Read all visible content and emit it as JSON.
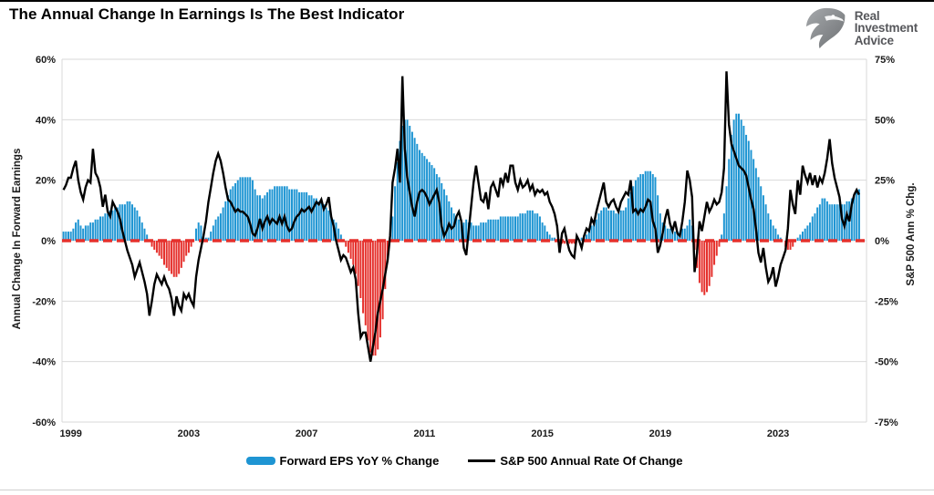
{
  "header": {
    "title": "The Annual Change In Earnings Is The Best Indicator",
    "brand": [
      "Real",
      "Investment",
      "Advice"
    ],
    "logo_text_color": "#56575b",
    "logo_icon_color_dark": "#6e7174",
    "logo_icon_color_light": "#9a9da0"
  },
  "chart_data": {
    "type": "bar+line combo, dual axis, monthly data Oct-1998 to Oct-2025",
    "grid": true,
    "grid_color": "#d9d9d9",
    "tick_label_color": "#1a1a1a",
    "legend_position": "bottom",
    "zero_line": {
      "color": "#e5302c",
      "style": "dashed",
      "value": 0
    },
    "x_axis": {
      "domain": [
        1998.7,
        2026.0
      ],
      "ticks": [
        1999,
        2003,
        2007,
        2011,
        2015,
        2019,
        2023
      ],
      "tick_labels": [
        "1999",
        "2003",
        "2007",
        "2011",
        "2015",
        "2019",
        "2023"
      ]
    },
    "left_axis": {
      "title": "Annual Change In Forward Earnings",
      "min": -60,
      "max": 60,
      "ticks": [
        60,
        40,
        20,
        0,
        -20,
        -40,
        -60
      ],
      "tick_labels": [
        "60%",
        "40%",
        "20%",
        "0%",
        "-20%",
        "-40%",
        "-60%"
      ]
    },
    "right_axis": {
      "title": "S&P 500  Ann % Chg.",
      "min": -75,
      "max": 75,
      "ticks": [
        75,
        50,
        25,
        0,
        -25,
        -50,
        -75
      ],
      "tick_labels": [
        "75%",
        "50%",
        "25%",
        "0%",
        "-25%",
        "-50%",
        "-75%"
      ]
    },
    "series": [
      {
        "name": "Forward EPS YoY % Change",
        "type": "bar",
        "axis": "left",
        "color_positive": "#1e95d3",
        "color_negative": "#e5302c",
        "x_start": 1998.75,
        "x_step_months": 1,
        "values": [
          3,
          3,
          3,
          3,
          4,
          6,
          7,
          5,
          4,
          5,
          5,
          6,
          6,
          7,
          7,
          8,
          8,
          9,
          9,
          10,
          10,
          11,
          11,
          12,
          12,
          12,
          13,
          13,
          12,
          11,
          10,
          8,
          6,
          4,
          2,
          0,
          -2,
          -3,
          -4,
          -5,
          -6,
          -8,
          -9,
          -10,
          -11,
          -12,
          -12,
          -11,
          -9,
          -7,
          -5,
          -4,
          -2,
          0,
          4,
          6,
          5,
          2,
          1,
          1,
          3,
          5,
          7,
          8,
          9,
          11,
          13,
          15,
          17,
          18,
          19,
          20,
          21,
          21,
          21,
          21,
          21,
          20,
          17,
          15,
          15,
          14,
          15,
          16,
          17,
          17,
          18,
          18,
          18,
          18,
          18,
          18,
          17,
          17,
          17,
          17,
          16,
          16,
          16,
          16,
          15,
          15,
          14,
          14,
          13,
          13,
          12,
          11,
          10,
          8,
          7,
          6,
          4,
          2,
          0,
          -2,
          -4,
          -6,
          -8,
          -11,
          -15,
          -19,
          -24,
          -28,
          -33,
          -37,
          -38,
          -38,
          -36,
          -32,
          -26,
          -16,
          -7,
          0,
          8,
          18,
          26,
          33,
          38,
          40,
          40,
          38,
          36,
          34,
          32,
          30,
          29,
          28,
          27,
          26,
          25,
          24,
          22,
          21,
          19,
          17,
          15,
          13,
          11,
          9,
          8,
          7,
          6,
          6,
          7,
          6,
          6,
          5,
          5,
          5,
          6,
          6,
          6,
          7,
          7,
          7,
          7,
          7,
          8,
          8,
          8,
          8,
          8,
          8,
          8,
          8,
          9,
          9,
          9,
          10,
          10,
          10,
          9,
          9,
          8,
          6,
          5,
          3,
          2,
          1,
          1,
          0,
          0,
          -1,
          -1,
          -1,
          -1,
          -1,
          -1,
          0,
          0,
          1,
          1,
          2,
          3,
          5,
          6,
          7,
          9,
          10,
          11,
          11,
          10,
          10,
          10,
          9,
          9,
          10,
          10,
          11,
          14,
          16,
          18,
          20,
          21,
          22,
          22,
          23,
          23,
          23,
          22,
          21,
          15,
          9,
          6,
          5,
          4,
          4,
          3,
          3,
          3,
          3,
          4,
          4,
          5,
          7,
          5,
          -3,
          -9,
          -14,
          -17,
          -18,
          -17,
          -15,
          -12,
          -8,
          -5,
          -2,
          2,
          9,
          18,
          27,
          35,
          40,
          42,
          42,
          40,
          38,
          35,
          33,
          30,
          27,
          24,
          21,
          18,
          15,
          12,
          9,
          7,
          5,
          4,
          2,
          1,
          0,
          -2,
          -3,
          -3,
          -2,
          0,
          1,
          2,
          3,
          4,
          5,
          6,
          8,
          9,
          11,
          12,
          14,
          14,
          13,
          12,
          12,
          12,
          12,
          12,
          12,
          12,
          13,
          13,
          14,
          15,
          16,
          17
        ]
      },
      {
        "name": "S&P 500 Annual Rate Of Change",
        "type": "line",
        "axis": "right",
        "color": "#000000",
        "x_start": 1998.75,
        "x_step_months": 1,
        "values": [
          21,
          23,
          26,
          26,
          30,
          33,
          25,
          20,
          17,
          22,
          25,
          24,
          38,
          28,
          26,
          22,
          14,
          19,
          12,
          10,
          16,
          14,
          12,
          9,
          4,
          0,
          -4,
          -7,
          -10,
          -15,
          -12,
          -9,
          -13,
          -17,
          -22,
          -31,
          -25,
          -18,
          -14,
          -16,
          -18,
          -15,
          -18,
          -20,
          -24,
          -31,
          -23,
          -27,
          -29,
          -22,
          -24,
          -22,
          -25,
          -27,
          -15,
          -8,
          -3,
          2,
          8,
          16,
          22,
          28,
          33,
          36,
          33,
          28,
          22,
          17,
          16,
          14,
          12,
          13,
          12,
          12,
          11,
          10,
          7,
          3,
          2,
          5,
          9,
          5,
          8,
          10,
          7,
          9,
          8,
          7,
          10,
          7,
          10,
          6,
          4,
          5,
          8,
          10,
          11,
          13,
          12,
          13,
          14,
          12,
          14,
          16,
          15,
          17,
          13,
          15,
          18,
          10,
          6,
          0,
          -4,
          -8,
          -6,
          -7,
          -10,
          -13,
          -11,
          -16,
          -30,
          -40,
          -38,
          -38,
          -44,
          -50,
          -44,
          -38,
          -30,
          -25,
          -20,
          -14,
          -8,
          2,
          24,
          30,
          38,
          24,
          68,
          38,
          26,
          20,
          14,
          10,
          16,
          20,
          21,
          20,
          18,
          15,
          17,
          19,
          21,
          16,
          6,
          2,
          4,
          7,
          5,
          6,
          10,
          12,
          8,
          -3,
          -6,
          4,
          14,
          24,
          31,
          24,
          17,
          16,
          20,
          13,
          22,
          24,
          21,
          18,
          26,
          23,
          28,
          24,
          31,
          31,
          24,
          21,
          25,
          22,
          23,
          25,
          21,
          23,
          19,
          21,
          20,
          21,
          19,
          20,
          16,
          14,
          11,
          6,
          -5,
          3,
          5,
          0,
          -4,
          -6,
          -7,
          2,
          0,
          -3,
          2,
          5,
          4,
          9,
          7,
          12,
          16,
          20,
          24,
          16,
          14,
          16,
          17,
          14,
          12,
          16,
          18,
          20,
          19,
          25,
          12,
          13,
          11,
          13,
          12,
          14,
          17,
          16,
          8,
          5,
          -5,
          -2,
          3,
          9,
          13,
          7,
          4,
          8,
          3,
          2,
          8,
          16,
          29,
          25,
          18,
          -13,
          -5,
          8,
          4,
          10,
          16,
          12,
          14,
          17,
          15,
          16,
          20,
          30,
          70,
          48,
          40,
          37,
          34,
          31,
          30,
          29,
          27,
          22,
          17,
          13,
          5,
          -5,
          -9,
          -3,
          -11,
          -17,
          -15,
          -11,
          -19,
          -15,
          -10,
          -7,
          -4,
          5,
          21,
          15,
          11,
          25,
          19,
          31,
          27,
          24,
          28,
          23,
          27,
          22,
          26,
          24,
          28,
          34,
          42,
          32,
          26,
          22,
          18,
          9,
          6,
          11,
          8,
          15,
          19,
          21,
          19
        ]
      }
    ]
  }
}
